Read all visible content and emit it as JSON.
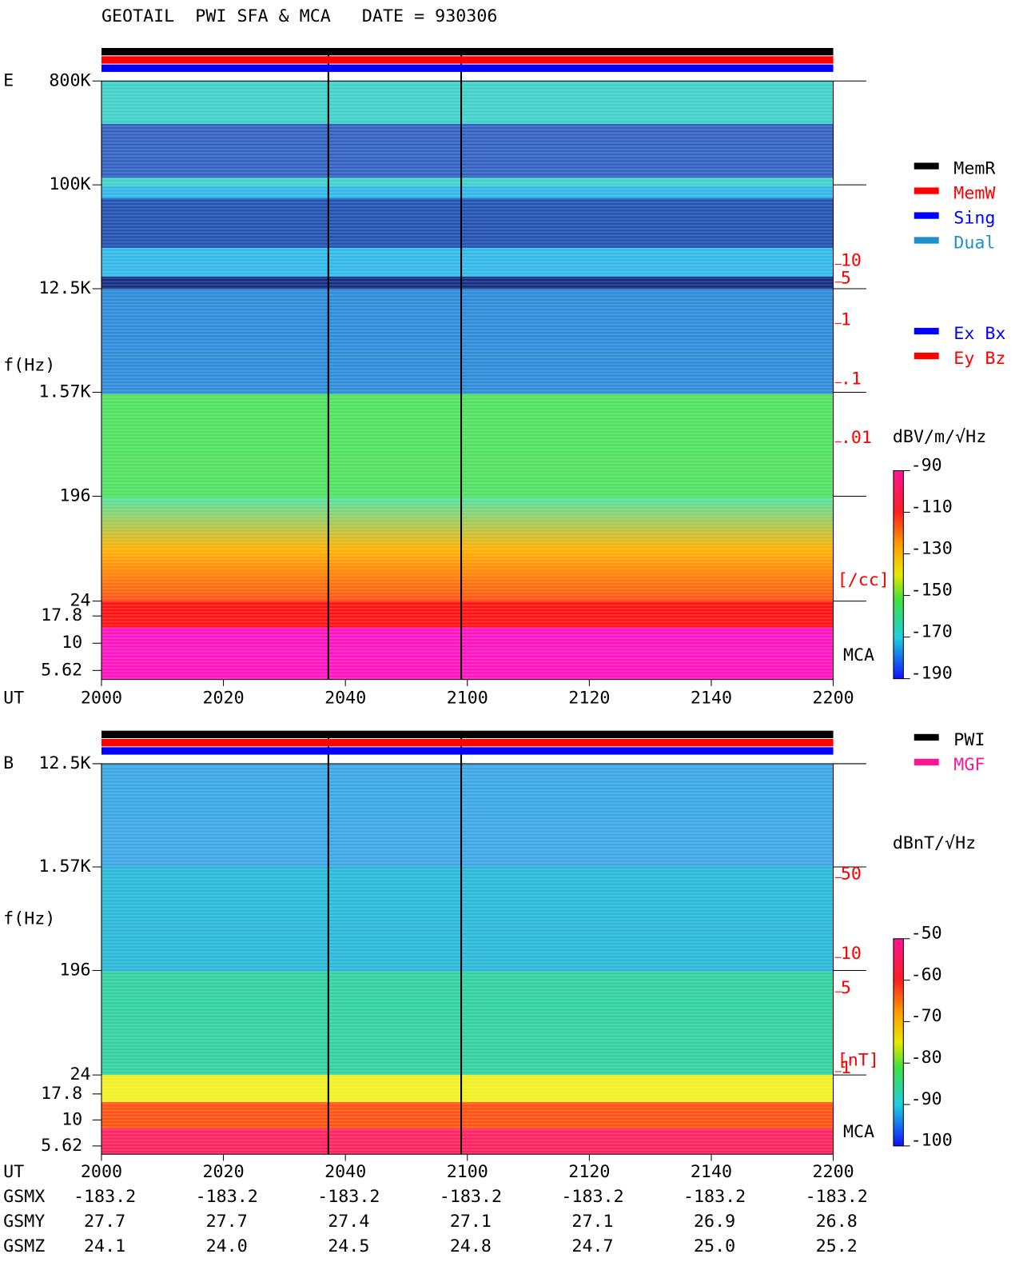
{
  "title": "GEOTAIL  PWI SFA & MCA   DATE = 930306",
  "chart_data": [
    {
      "type": "spectrogram",
      "panel_label": "E",
      "ylabel": "f(Hz)",
      "xlabel": "UT",
      "yscale": "log",
      "ylim": [
        24,
        800000
      ],
      "yticks": [
        {
          "value": 800000,
          "label": "800K"
        },
        {
          "value": 100000,
          "label": "100K"
        },
        {
          "value": 12500,
          "label": "12.5K"
        },
        {
          "value": 1570,
          "label": "1.57K"
        },
        196,
        24
      ],
      "mca_label": "MCA",
      "mca_ylim": [
        5.62,
        17.8
      ],
      "mca_yticks": [
        17.8,
        10,
        5.62
      ],
      "categories": [
        "2000",
        "2020",
        "2040",
        "2100",
        "2120",
        "2140",
        "2200"
      ],
      "y2_label": "[/cc]",
      "y2scale": "log",
      "y2lim": [
        0.01,
        10
      ],
      "y2ticks": [
        10,
        5,
        1,
        {
          "value": 0.1,
          "label": ".1"
        },
        {
          "value": 0.01,
          "label": ".01"
        }
      ],
      "colorbar": {
        "label": "dBV/m/√Hz",
        "lim": [
          -190,
          -90
        ],
        "ticks": [
          -90,
          -110,
          -130,
          -150,
          -170,
          -190
        ]
      }
    },
    {
      "type": "spectrogram",
      "panel_label": "B",
      "ylabel": "f(Hz)",
      "xlabel": "UT",
      "yscale": "log",
      "ylim": [
        24,
        12500
      ],
      "yticks": [
        {
          "value": 12500,
          "label": "12.5K"
        },
        {
          "value": 1570,
          "label": "1.57K"
        },
        196,
        24
      ],
      "mca_label": "MCA",
      "mca_ylim": [
        5.62,
        17.8
      ],
      "mca_yticks": [
        17.8,
        10,
        5.62
      ],
      "categories": [
        "2000",
        "2020",
        "2040",
        "2100",
        "2120",
        "2140",
        "2200"
      ],
      "y2_label": "[nT]",
      "y2scale": "log",
      "y2lim": [
        1,
        50
      ],
      "y2ticks": [
        50,
        10,
        5,
        1
      ],
      "colorbar": {
        "label": "dBnT/√Hz",
        "lim": [
          -100,
          -50
        ],
        "ticks": [
          -50,
          -60,
          -70,
          -80,
          -90,
          -100
        ]
      }
    }
  ],
  "legends": [
    [
      {
        "name": "MemR",
        "color": "#000000"
      },
      {
        "name": "MemW",
        "color": "#ff0000"
      },
      {
        "name": "Sing",
        "color": "#0000ff"
      },
      {
        "name": "Dual",
        "color": "#2090c8"
      }
    ],
    [
      {
        "name": "Ex Bx",
        "color": "#0000ff"
      },
      {
        "name": "Ey Bz",
        "color": "#ff0000"
      }
    ],
    [
      {
        "name": "PWI",
        "color": "#000000"
      },
      {
        "name": "MGF",
        "color": "#ff1493"
      }
    ]
  ],
  "ephemeris": {
    "rows": [
      {
        "label": "GSMX",
        "values": [
          "-183.2",
          "-183.2",
          "-183.2",
          "-183.2",
          "-183.2",
          "-183.2",
          "-183.2"
        ]
      },
      {
        "label": "GSMY",
        "values": [
          "27.7",
          "27.7",
          "27.4",
          "27.1",
          "27.1",
          "26.9",
          "26.8"
        ]
      },
      {
        "label": "GSMZ",
        "values": [
          "24.1",
          "24.0",
          "24.5",
          "24.8",
          "24.7",
          "25.0",
          "25.2"
        ]
      }
    ]
  }
}
